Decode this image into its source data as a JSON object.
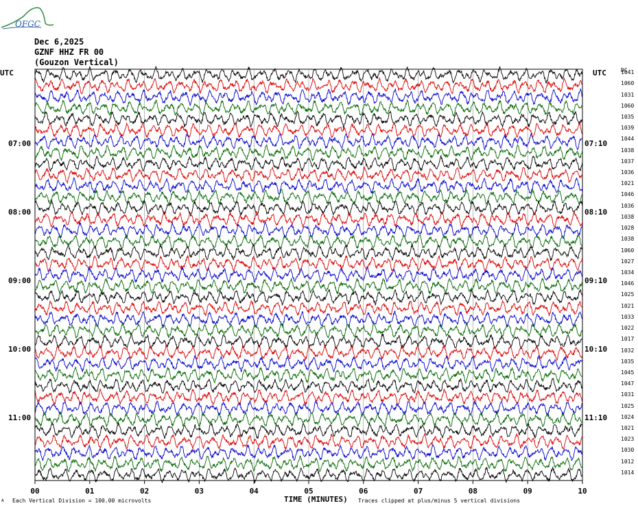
{
  "header": {
    "logo_text": "OFGC",
    "date": "Dec 6,2025",
    "station": "GZNF HHZ FR 00",
    "location": "(Gouzon Vertical)",
    "left_tz": "UTC",
    "right_tz": "UTC",
    "right_col_header": "DC"
  },
  "left_time_labels": [
    "07:00",
    "08:00",
    "09:00",
    "10:00",
    "11:00"
  ],
  "right_time_labels": [
    "07:10",
    "08:10",
    "09:10",
    "10:10",
    "11:10"
  ],
  "row_values": [
    "1041",
    "1060",
    "1031",
    "1060",
    "1035",
    "1039",
    "1044",
    "1038",
    "1037",
    "1036",
    "1021",
    "1046",
    "1036",
    "1038",
    "1028",
    "1038",
    "1060",
    "1027",
    "1034",
    "1046",
    "1025",
    "1021",
    "1033",
    "1022",
    "1017",
    "1032",
    "1035",
    "1045",
    "1047",
    "1031",
    "1025",
    "1024",
    "1021",
    "1023",
    "1030",
    "1012",
    "1014"
  ],
  "footer": {
    "vertical_division": "Each Vertical Division =  100.00 microvolts",
    "xlabel": "TIME (MINUTES)",
    "clip_note": "Traces clipped at plus/minus 5 vertical divisions"
  },
  "chart_data": {
    "type": "line",
    "xlabel": "TIME (MINUTES)",
    "x_ticks": [
      "00",
      "01",
      "02",
      "03",
      "04",
      "05",
      "06",
      "07",
      "08",
      "09",
      "10"
    ],
    "xlim": [
      0,
      10
    ],
    "trace_count": 37,
    "trace_colors": [
      "#000000",
      "#dd0000",
      "#0000cc",
      "#006600"
    ],
    "grid": true
  }
}
